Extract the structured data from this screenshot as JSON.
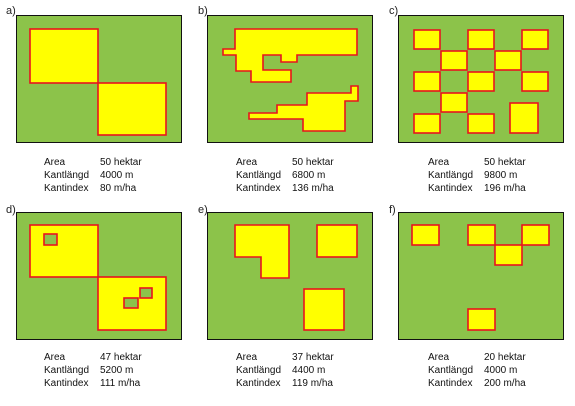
{
  "colors": {
    "land": "#8cc34a",
    "patch": "#ffff00",
    "edge": "#e8141e",
    "frame": "#111111"
  },
  "labels": {
    "area": "Area",
    "edge_length": "Kantlängd",
    "edge_index": "Kantindex"
  },
  "panels": [
    {
      "letter": "a)",
      "area": "50 hektar",
      "edge_length": "4000 m",
      "edge_index": "80 m/ha"
    },
    {
      "letter": "b)",
      "area": "50 hektar",
      "edge_length": "6800 m",
      "edge_index": "136 m/ha"
    },
    {
      "letter": "c)",
      "area": "50 hektar",
      "edge_length": "9800 m",
      "edge_index": "196 m/ha"
    },
    {
      "letter": "d)",
      "area": "47 hektar",
      "edge_length": "5200 m",
      "edge_index": "111 m/ha"
    },
    {
      "letter": "e)",
      "area": "37 hektar",
      "edge_length": "4400 m",
      "edge_index": "119 m/ha"
    },
    {
      "letter": "f)",
      "area": "20 hektar",
      "edge_length": "4000 m",
      "edge_index": "200 m/ha"
    }
  ]
}
